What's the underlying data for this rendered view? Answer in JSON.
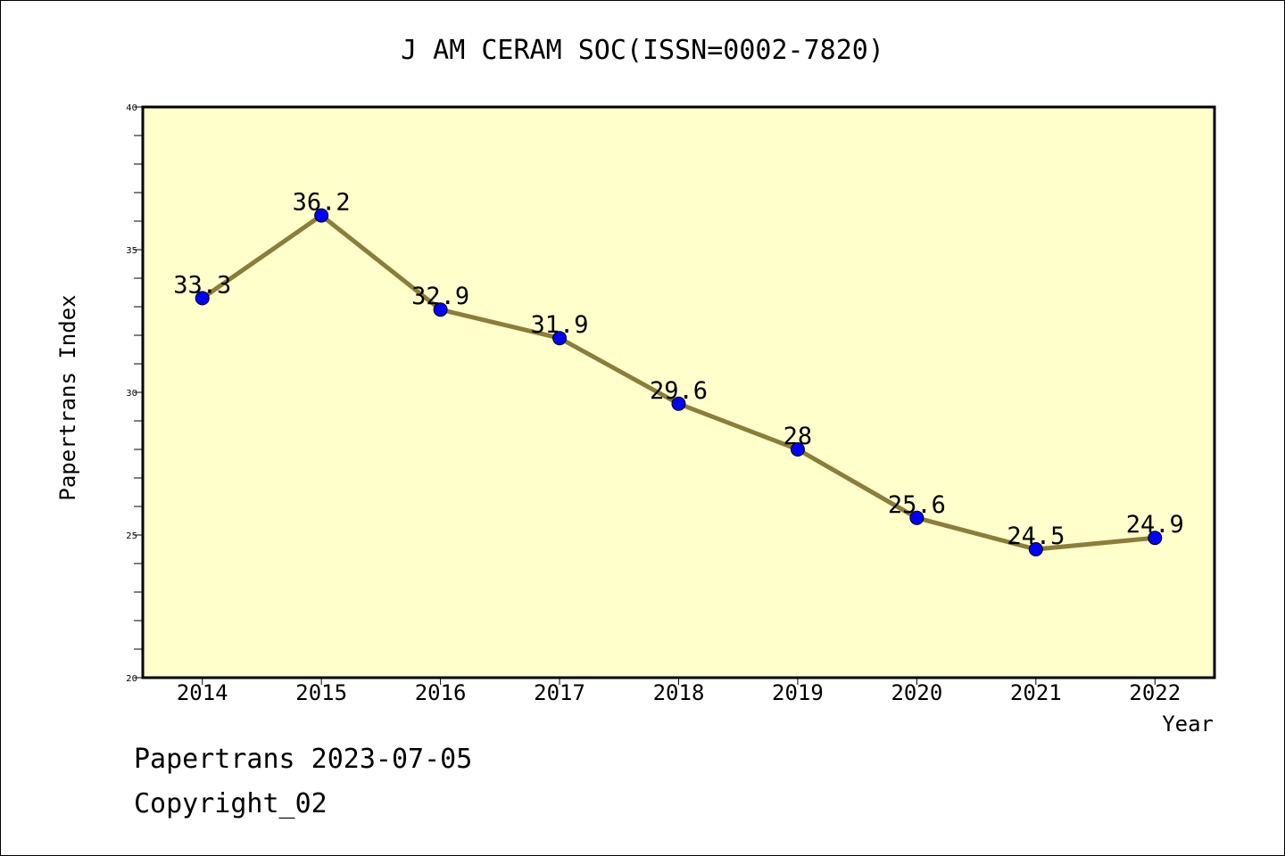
{
  "chart_data": {
    "type": "line",
    "title": "J AM CERAM SOC(ISSN=0002-7820)",
    "xlabel": "Year",
    "ylabel": "Papertrans Index",
    "x": [
      "2014",
      "2015",
      "2016",
      "2017",
      "2018",
      "2019",
      "2020",
      "2021",
      "2022"
    ],
    "series": [
      {
        "values": [
          33.3,
          36.2,
          32.9,
          31.9,
          29.6,
          28,
          25.6,
          24.5,
          24.9
        ],
        "labels": [
          "33.3",
          "36.2",
          "32.9",
          "31.9",
          "29.6",
          "28",
          "25.6",
          "24.5",
          "24.9"
        ]
      }
    ],
    "ylim": [
      20,
      40
    ],
    "yticks": [
      "20",
      "25",
      "30",
      "35",
      "40"
    ],
    "grid": false,
    "legend": "none",
    "colors": {
      "plot_background": "#ffffcc",
      "line": "#8b7d3a",
      "marker": "#0000ff"
    }
  },
  "footer": {
    "line1": "Papertrans 2023-07-05",
    "line2": "Copyright_02"
  }
}
